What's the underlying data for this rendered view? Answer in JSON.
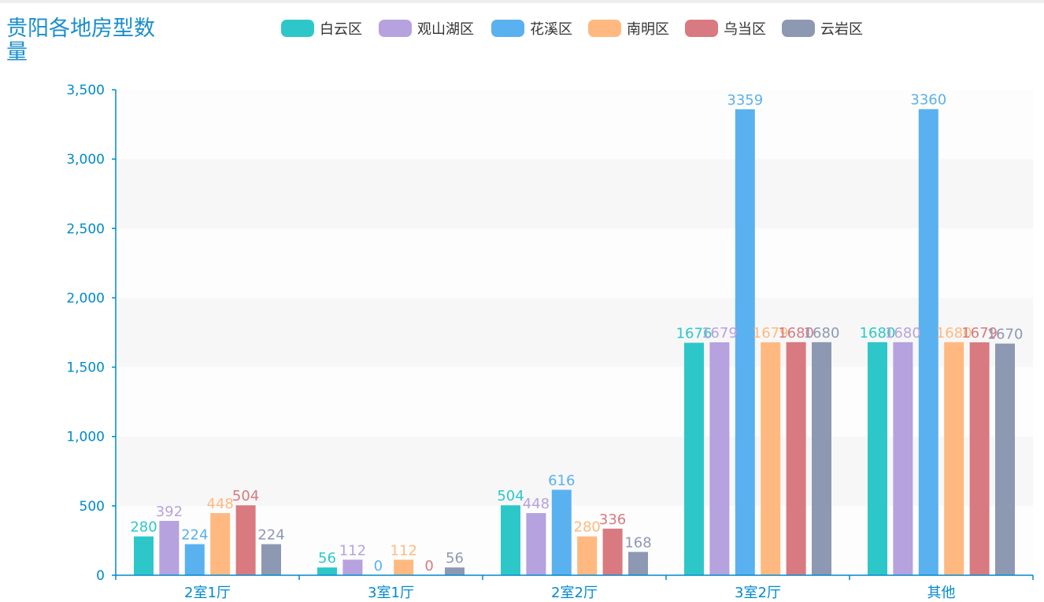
{
  "chart_data": {
    "type": "bar",
    "title": "贵阳各地房型数量",
    "categories": [
      "2室1厅",
      "3室1厅",
      "2室2厅",
      "3室2厅",
      "其他"
    ],
    "series": [
      {
        "name": "白云区",
        "color": "#2ec7c9",
        "values": [
          280,
          56,
          504,
          1676,
          1680
        ]
      },
      {
        "name": "观山湖区",
        "color": "#b6a2de",
        "values": [
          392,
          112,
          448,
          1679,
          1680
        ]
      },
      {
        "name": "花溪区",
        "color": "#5ab1ef",
        "values": [
          224,
          0,
          616,
          3359,
          3360
        ]
      },
      {
        "name": "南明区",
        "color": "#ffb980",
        "values": [
          448,
          112,
          280,
          1679,
          1680
        ]
      },
      {
        "name": "乌当区",
        "color": "#d87a80",
        "values": [
          504,
          0,
          336,
          1680,
          1679
        ]
      },
      {
        "name": "云岩区",
        "color": "#8d98b3",
        "values": [
          224,
          56,
          168,
          1680,
          1670
        ]
      }
    ],
    "yticks": [
      "0",
      "500",
      "1,000",
      "1,500",
      "2,000",
      "2,500",
      "3,000",
      "3,500"
    ],
    "ylim": [
      0,
      3500
    ],
    "xlabel": "",
    "ylabel": "",
    "legend_position": "top",
    "grid": "alternating-bands",
    "axis_color": "#008acd",
    "band_color": "#f7f7f7"
  }
}
